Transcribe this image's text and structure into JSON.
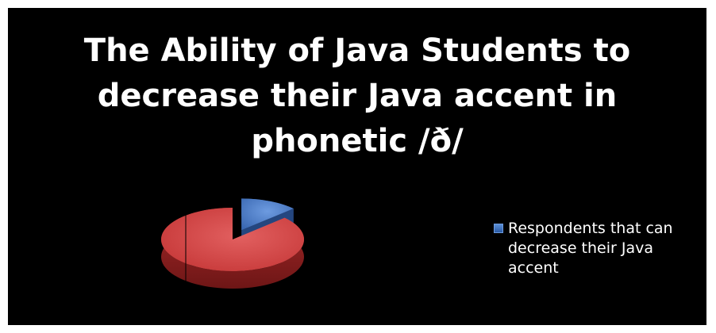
{
  "chart_data": {
    "type": "pie",
    "title_lines": [
      "The Ability of Java Students to",
      "decrease their Java accent in",
      "phonetic /ð/"
    ],
    "slices": [
      {
        "label": "Respondents that can decrease their Java accent",
        "value": 13,
        "color": "#4a7cc9"
      },
      {
        "label": "",
        "value": 87,
        "color": "#cf3b3b"
      }
    ],
    "legend": {
      "placement": "right",
      "entries": [
        "Respondents that can decrease their Java accent"
      ]
    },
    "legend_label_lines": [
      "Respondents that can",
      "decrease their Java",
      "accent"
    ],
    "style": "3d-exploded"
  }
}
